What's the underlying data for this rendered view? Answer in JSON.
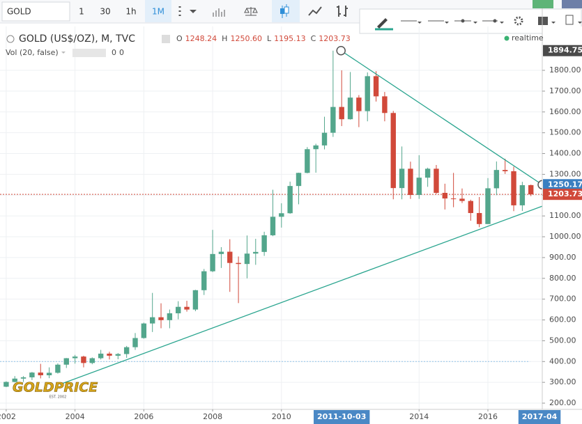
{
  "toolbar": {
    "symbol": "GOLD",
    "intervals": [
      "1",
      "30",
      "1h",
      "1M"
    ],
    "active_interval": 3
  },
  "header": {
    "title": "GOLD (US$/OZ), M, TVC",
    "ohlc_names": [
      "O",
      "H",
      "L",
      "C"
    ],
    "ohlc_labels": [
      "1248.24",
      "1250.60",
      "1195.13",
      "1203.73"
    ],
    "volume": "Vol (20, false)",
    "volume_values": [
      "0",
      "0"
    ],
    "status": "realtime"
  },
  "logo": {
    "name": "GOLDPRICE",
    "tagline": "EST. 2002"
  },
  "chart_data": {
    "type": "candlestick",
    "x": [
      2002,
      2002.25,
      2002.5,
      2002.75,
      2003,
      2003.25,
      2003.5,
      2003.75,
      2004,
      2004.25,
      2004.5,
      2004.75,
      2005,
      2005.25,
      2005.5,
      2005.75,
      2006,
      2006.25,
      2006.5,
      2006.75,
      2007,
      2007.25,
      2007.5,
      2007.75,
      2008,
      2008.25,
      2008.5,
      2008.75,
      2009,
      2009.25,
      2009.5,
      2009.75,
      2010,
      2010.25,
      2010.5,
      2010.75,
      2011,
      2011.25,
      2011.5,
      2011.75,
      2012,
      2012.25,
      2012.5,
      2012.75,
      2013,
      2013.25,
      2013.5,
      2013.75,
      2014,
      2014.25,
      2014.5,
      2014.75,
      2015,
      2015.25,
      2015.5,
      2015.75,
      2016,
      2016.25,
      2016.5,
      2016.75,
      2017,
      2017.25
    ],
    "open": [
      279,
      302,
      318,
      324,
      347,
      334,
      346,
      385,
      416,
      424,
      393,
      416,
      438,
      428,
      436,
      469,
      513,
      583,
      613,
      599,
      632,
      663,
      650,
      743,
      834,
      917,
      928,
      874,
      869,
      919,
      927,
      1007,
      1096,
      1113,
      1244,
      1307,
      1421,
      1439,
      1500,
      1624,
      1565,
      1669,
      1604,
      1772,
      1675,
      1595,
      1234,
      1327,
      1201,
      1284,
      1327,
      1211,
      1184,
      1183,
      1172,
      1114,
      1061,
      1233,
      1321,
      1315,
      1151,
      1248.24
    ],
    "high": [
      305,
      330,
      330,
      350,
      389,
      372,
      391,
      417,
      432,
      428,
      420,
      456,
      447,
      441,
      475,
      537,
      587,
      730,
      680,
      650,
      690,
      692,
      745,
      845,
      1033,
      950,
      988,
      905,
      1006,
      990,
      1024,
      1226,
      1161,
      1265,
      1308,
      1431,
      1447,
      1577,
      1894.75,
      1800,
      1792,
      1681,
      1790,
      1796,
      1696,
      1605,
      1434,
      1361,
      1392,
      1332,
      1345,
      1255,
      1307,
      1232,
      1178,
      1191,
      1282,
      1362,
      1375,
      1337,
      1264,
      1250.6
    ],
    "low": [
      277,
      300,
      302,
      311,
      319,
      320,
      342,
      369,
      390,
      372,
      387,
      410,
      410,
      411,
      418,
      456,
      510,
      542,
      560,
      560,
      603,
      640,
      642,
      720,
      830,
      850,
      735,
      681,
      800,
      865,
      908,
      1003,
      1044,
      1110,
      1156,
      1305,
      1308,
      1420,
      1480,
      1532,
      1563,
      1527,
      1555,
      1650,
      1555,
      1180,
      1180,
      1182,
      1182,
      1240,
      1206,
      1131,
      1142,
      1162,
      1077,
      1046,
      1061,
      1200,
      1302,
      1123,
      1124,
      1195.13
    ],
    "close": [
      302,
      318,
      324,
      347,
      334,
      346,
      385,
      416,
      424,
      393,
      416,
      438,
      428,
      436,
      469,
      513,
      583,
      613,
      599,
      632,
      663,
      650,
      743,
      834,
      917,
      928,
      874,
      869,
      919,
      927,
      1007,
      1096,
      1113,
      1244,
      1307,
      1421,
      1439,
      1500,
      1624,
      1565,
      1669,
      1604,
      1772,
      1675,
      1595,
      1234,
      1327,
      1201,
      1284,
      1327,
      1211,
      1184,
      1183,
      1172,
      1114,
      1061,
      1233,
      1321,
      1315,
      1151,
      1248,
      1203.73
    ],
    "up_color": "#53a68c",
    "down_color": "#d1493a",
    "xlim": [
      2001.82,
      2017.58
    ],
    "ylim": [
      170,
      2011
    ],
    "xticks": [
      2002,
      2004,
      2006,
      2008,
      2010,
      2014,
      2016
    ],
    "yticks": [
      {
        "value": 200,
        "label": "200.00"
      },
      {
        "value": 300,
        "label": "300.00"
      },
      {
        "value": 400,
        "label": "400.00"
      },
      {
        "value": 500,
        "label": "500.00"
      },
      {
        "value": 600,
        "label": "600.00"
      },
      {
        "value": 700,
        "label": "700.00"
      },
      {
        "value": 800,
        "label": "800.00"
      },
      {
        "value": 900,
        "label": "900.00"
      },
      {
        "value": 1000,
        "label": "1000.00"
      },
      {
        "value": 1100,
        "label": "1100.00"
      },
      {
        "value": 1200,
        "label": "1200.00"
      },
      {
        "value": 1300,
        "label": "1300.00"
      },
      {
        "value": 1400,
        "label": "1400.00"
      },
      {
        "value": 1500,
        "label": "1500.00"
      },
      {
        "value": 1600,
        "label": "1600.00"
      },
      {
        "value": 1700,
        "label": "1700.00"
      },
      {
        "value": 1800,
        "label": "1800.00"
      }
    ],
    "grid": true,
    "time_markers": [
      {
        "value": 2011.75,
        "label": "2011-10-03"
      },
      {
        "value": 2017.5,
        "label": "2017-04"
      }
    ],
    "price_markers": [
      {
        "value": 1894.75,
        "label": "1894.75",
        "color": "#4a4a4a"
      },
      {
        "value": 1250.17,
        "label": "1250.17",
        "color": "#3a7fc1"
      },
      {
        "value": 1203.73,
        "label": "1203.73",
        "color": "#d1493a"
      }
    ],
    "trendlines": [
      {
        "color": "#2aa58f",
        "x": [
          2011.73,
          2017.58
        ],
        "y": [
          1894.75,
          1250.17
        ]
      },
      {
        "color": "#2aa58f",
        "x": [
          2003.56,
          2017.58
        ],
        "y": [
          290,
          1147
        ]
      }
    ],
    "hlines": [
      {
        "value": 400,
        "x_end": 2017.22,
        "color": "#8fc3e8"
      },
      {
        "value": 1203.73,
        "x_end": 2017.58,
        "color": "#d1493a"
      }
    ]
  }
}
